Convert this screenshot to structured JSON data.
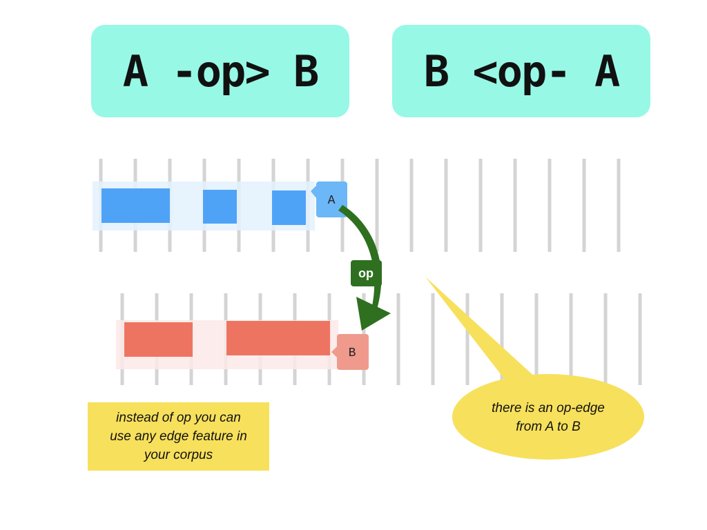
{
  "titles": {
    "left": "A -op> B",
    "right": "B <op- A"
  },
  "diagram": {
    "node_a_label": "A",
    "node_b_label": "B",
    "edge_label": "op"
  },
  "note": {
    "line1": "instead of op you can",
    "line2": "use any edge feature in",
    "line3": "your corpus"
  },
  "callout": {
    "line1": "there is an op-edge",
    "line2": "from A to B"
  },
  "colors": {
    "title_bg": "#97f8e6",
    "a_slot": "#4fa3f7",
    "a_band": "#e3f1fd",
    "a_node": "#6cb7f7",
    "b_slot": "#ee7462",
    "b_band": "#fce9e7",
    "b_node": "#ef9a8c",
    "edge": "#2e7020",
    "callout": "#f7e05c"
  }
}
